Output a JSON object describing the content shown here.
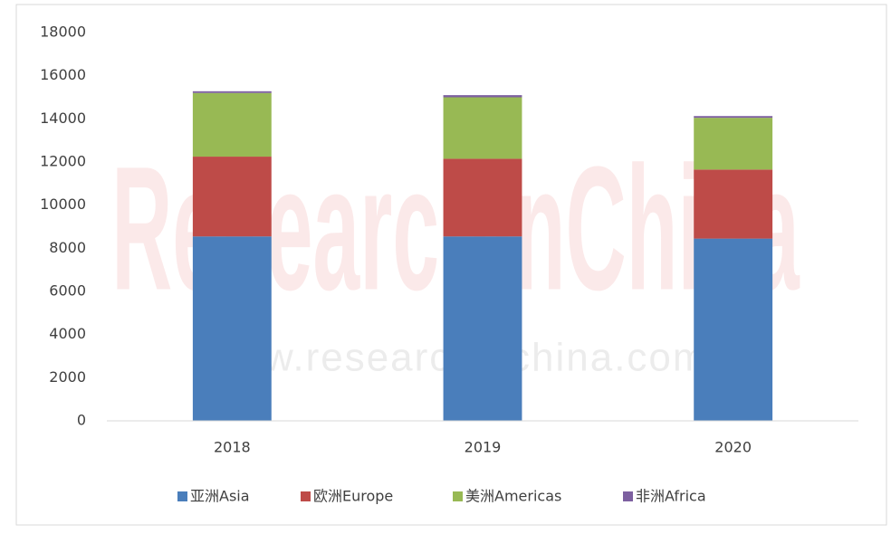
{
  "chart_data": {
    "type": "stacked_bar",
    "watermark": [
      "ResearchInChina",
      "www.researchinchina.com"
    ],
    "categories": [
      "2018",
      "2019",
      "2020"
    ],
    "series": [
      {
        "name": "亚洲Asia",
        "color": "#4a7ebb",
        "values": [
          8550,
          8550,
          8450
        ]
      },
      {
        "name": "欧洲Europe",
        "color": "#be4b48",
        "values": [
          3700,
          3600,
          3200
        ]
      },
      {
        "name": "美洲Americas",
        "color": "#98b954",
        "values": [
          2950,
          2850,
          2400
        ]
      },
      {
        "name": "非洲Africa",
        "color": "#7d60a0",
        "values": [
          80,
          100,
          80
        ]
      }
    ],
    "ylim": [
      0,
      18000
    ],
    "yticks": [
      0,
      2000,
      4000,
      6000,
      8000,
      10000,
      12000,
      14000,
      16000,
      18000
    ],
    "grid": false,
    "legend": "bottom"
  }
}
